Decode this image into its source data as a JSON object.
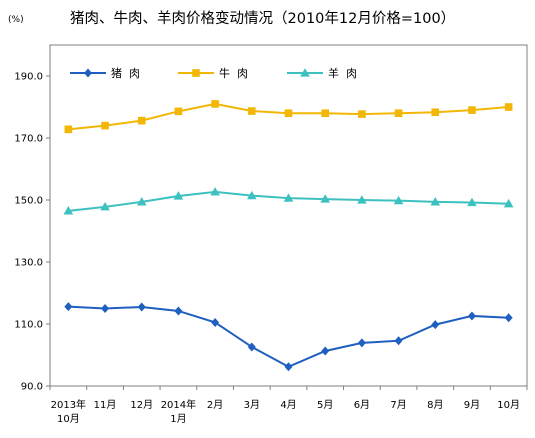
{
  "chart_data": {
    "type": "line",
    "title": "猪肉、牛肉、羊肉价格变动情况（2010年12月价格=100）",
    "unit": "(%)",
    "categories": [
      [
        "2013年",
        "10月"
      ],
      [
        "11月"
      ],
      [
        "12月"
      ],
      [
        "2014年",
        "1月"
      ],
      [
        "2月"
      ],
      [
        "3月"
      ],
      [
        "4月"
      ],
      [
        "5月"
      ],
      [
        "6月"
      ],
      [
        "7月"
      ],
      [
        "8月"
      ],
      [
        "9月"
      ],
      [
        "10月"
      ]
    ],
    "ylim": [
      90,
      200
    ],
    "yticks": [
      "90.0",
      "110.0",
      "130.0",
      "150.0",
      "170.0",
      "190.0"
    ],
    "grid": false,
    "legend_position": "top",
    "series": [
      {
        "name": "猪  肉",
        "color": "#1f5fbf",
        "marker": "diamond",
        "values": [
          115.6,
          115.0,
          115.5,
          114.2,
          110.5,
          102.6,
          96.2,
          101.3,
          103.9,
          104.6,
          109.8,
          112.6,
          112.0
        ]
      },
      {
        "name": "牛  肉",
        "color": "#f2b705",
        "marker": "square",
        "values": [
          172.8,
          174.0,
          175.6,
          178.6,
          181.0,
          178.7,
          178.0,
          178.0,
          177.7,
          178.0,
          178.3,
          179.0,
          180.0
        ]
      },
      {
        "name": "羊  肉",
        "color": "#3cc0c0",
        "marker": "triangle",
        "values": [
          146.5,
          147.8,
          149.4,
          151.3,
          152.6,
          151.4,
          150.6,
          150.3,
          150.0,
          149.8,
          149.4,
          149.2,
          148.8
        ]
      }
    ]
  }
}
